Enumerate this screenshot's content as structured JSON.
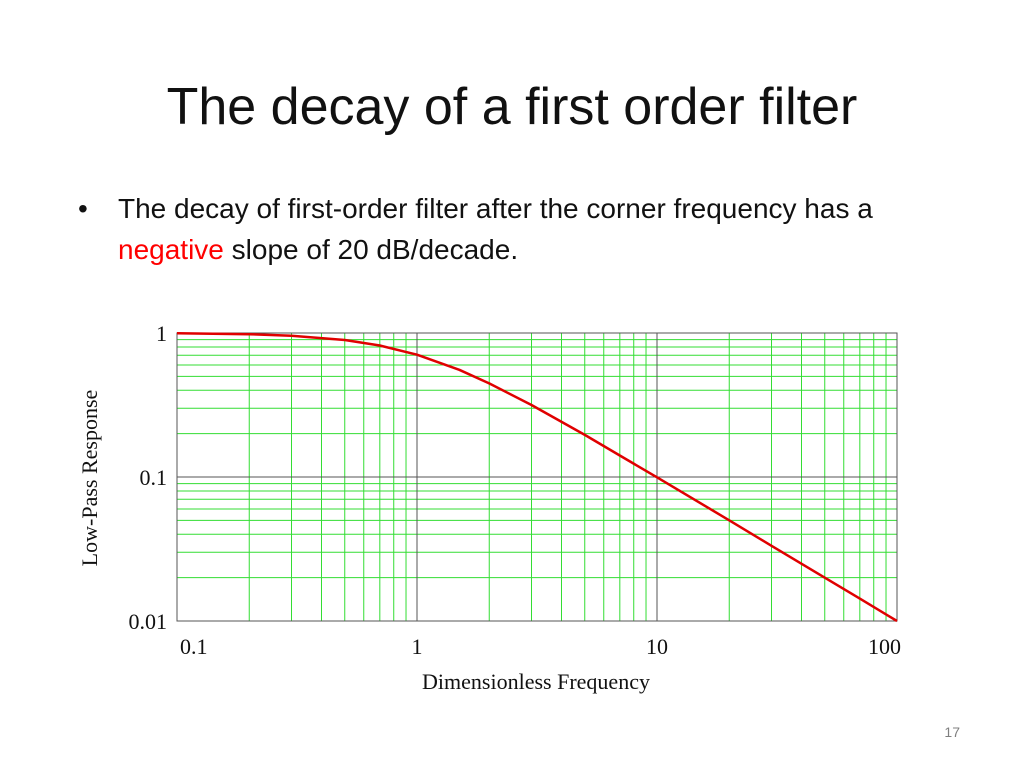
{
  "slide": {
    "title": "The decay of a first order filter",
    "bullet": {
      "before": "The decay of first-order filter after the corner frequency has a",
      "emphasis": "negative",
      "after": "slope of 20 dB/decade."
    },
    "page_number": "17"
  },
  "colors": {
    "emphasis": "#ff0000",
    "curve": "#e00000",
    "minor_grid": "#33dd33",
    "major_grid": "#555555"
  },
  "chart_data": {
    "type": "line",
    "xlabel": "Dimensionless Frequency",
    "ylabel": "Low-Pass Response",
    "x_scale": "log",
    "y_scale": "log",
    "xlim": [
      0.1,
      100
    ],
    "ylim": [
      0.01,
      1
    ],
    "x_tick_labels": [
      "0.1",
      "1",
      "10",
      "100"
    ],
    "y_tick_labels": [
      "1",
      "0.1",
      "0.01"
    ],
    "grid": true,
    "legend": "none",
    "series": [
      {
        "x": [
          0.1,
          0.2,
          0.3,
          0.5,
          0.7,
          1,
          1.5,
          2,
          3,
          5,
          7,
          10,
          20,
          30,
          50,
          70,
          100
        ],
        "y": [
          0.995,
          0.981,
          0.958,
          0.894,
          0.819,
          0.707,
          0.555,
          0.447,
          0.316,
          0.196,
          0.141,
          0.0995,
          0.05,
          0.0333,
          0.02,
          0.0143,
          0.01
        ]
      }
    ]
  }
}
